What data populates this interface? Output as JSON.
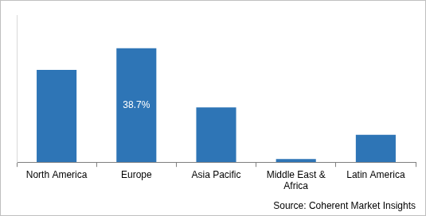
{
  "chart_data": {
    "type": "bar",
    "categories": [
      "North America",
      "Europe",
      "Asia Pacific",
      "Middle East & Africa",
      "Latin America"
    ],
    "values": [
      31.4,
      38.7,
      18.6,
      1.1,
      9.3
    ],
    "value_labels": [
      null,
      "38.7%",
      null,
      null,
      null
    ],
    "data_labels": true,
    "color": "#2e75b6",
    "ylim": [
      0,
      50
    ],
    "yticks": [],
    "grid": false,
    "tick_labels": "x",
    "annotation": "Source: Coherent Market Insights"
  }
}
